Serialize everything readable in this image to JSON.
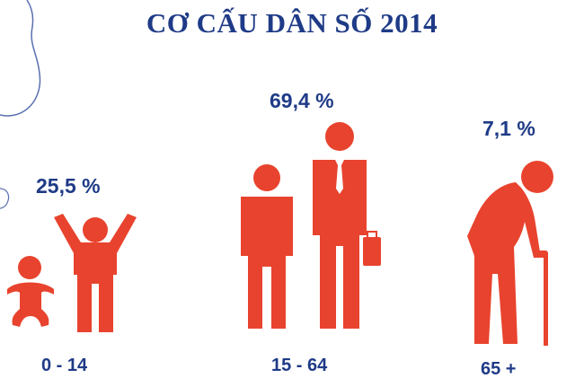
{
  "title": "CƠ CẤU DÂN SỐ 2014",
  "groups": [
    {
      "age": "0 - 14",
      "percent": "25,5 %",
      "share": 25.5
    },
    {
      "age": "15 - 64",
      "percent": "69,4 %",
      "share": 69.4
    },
    {
      "age": "65 +",
      "percent": "7,1 %",
      "share": 7.1
    }
  ],
  "colors": {
    "figure": "#e8432e",
    "text": "#1f3b87",
    "decor": "#5a6fb0"
  },
  "icons": [
    "baby-icon",
    "child-icon",
    "adult-man-icon",
    "businessman-icon",
    "elderly-man-icon"
  ]
}
